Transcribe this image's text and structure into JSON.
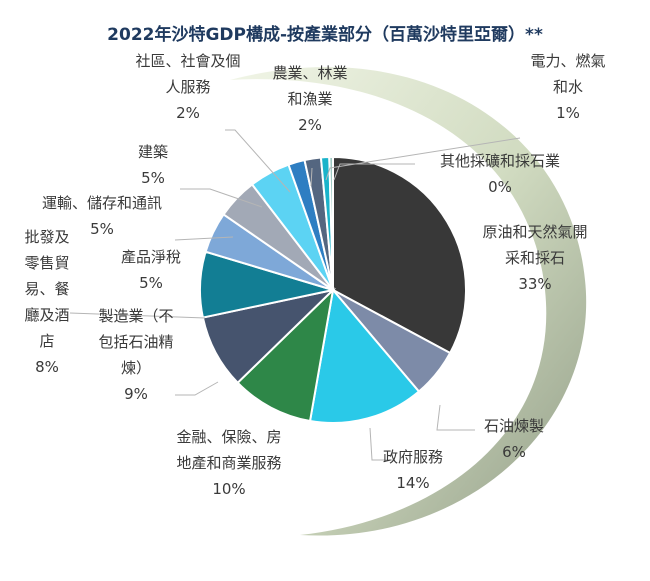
{
  "chart_data": {
    "type": "pie",
    "title": "2022年沙特GDP構成-按產業部分（百萬沙特里亞爾）**",
    "slices": [
      {
        "label_lines": [
          "原油和天然氣開",
          "采和採石"
        ],
        "value": 33,
        "value_label": "33%",
        "color": "#383838"
      },
      {
        "label_lines": [
          "石油煉製"
        ],
        "value": 6,
        "value_label": "6%",
        "color": "#7d8ba8"
      },
      {
        "label_lines": [
          "政府服務"
        ],
        "value": 14,
        "value_label": "14%",
        "color": "#2ac9e8"
      },
      {
        "label_lines": [
          "金融、保險、房",
          "地產和商業服務"
        ],
        "value": 10,
        "value_label": "10%",
        "color": "#2e8748"
      },
      {
        "label_lines": [
          "製造業（不",
          "包括石油精",
          "煉）"
        ],
        "value": 9,
        "value_label": "9%",
        "color": "#46546e"
      },
      {
        "label_lines": [
          "批發及",
          "零售貿",
          "易、餐",
          "廳及酒",
          "店"
        ],
        "value": 8,
        "value_label": "8%",
        "color": "#127e94"
      },
      {
        "label_lines": [
          "產品淨稅"
        ],
        "value": 5,
        "value_label": "5%",
        "color": "#7ea8d8"
      },
      {
        "label_lines": [
          "運輸、儲存和通訊"
        ],
        "value": 5,
        "value_label": "5%",
        "color": "#a2a9b6"
      },
      {
        "label_lines": [
          "建築"
        ],
        "value": 5,
        "value_label": "5%",
        "color": "#5cd3f3"
      },
      {
        "label_lines": [
          "社區、社會及個",
          "人服務"
        ],
        "value": 2,
        "value_label": "2%",
        "color": "#2e7ec2"
      },
      {
        "label_lines": [
          "農業、林業",
          "和漁業"
        ],
        "value": 2,
        "value_label": "2%",
        "color": "#546680"
      },
      {
        "label_lines": [
          "電力、燃氣",
          "和水"
        ],
        "value": 1,
        "value_label": "1%",
        "color": "#1bb3ca"
      },
      {
        "label_lines": [
          "其他採礦和採石業"
        ],
        "value": 0,
        "value_label": "0%",
        "color": "#9ec9c3"
      }
    ]
  }
}
